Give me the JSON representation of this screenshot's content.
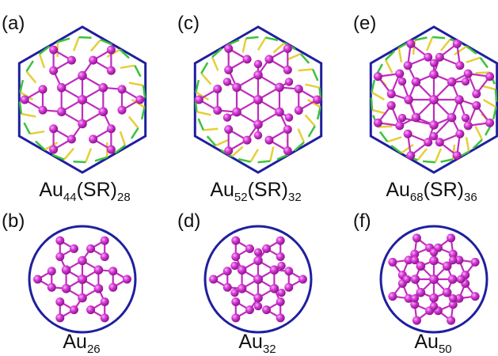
{
  "colors": {
    "frame": "#1f1f9e",
    "atom": "#cc2ecc",
    "atom_light": "#f08cf0",
    "bond": "#c02ac0",
    "sulfur": "#e5cf3a",
    "carbon": "#3cc23c"
  },
  "panels": [
    {
      "label": "(a)",
      "formula": {
        "el": "Au",
        "n": "44",
        "lig": "(SR)",
        "m": "28"
      }
    },
    {
      "label": "(c)",
      "formula": {
        "el": "Au",
        "n": "52",
        "lig": "(SR)",
        "m": "32"
      }
    },
    {
      "label": "(e)",
      "formula": {
        "el": "Au",
        "n": "68",
        "lig": "(SR)",
        "m": "36"
      }
    },
    {
      "label": "(b)",
      "core": {
        "el": "Au",
        "n": "26"
      }
    },
    {
      "label": "(d)",
      "core": {
        "el": "Au",
        "n": "32"
      }
    },
    {
      "label": "(f)",
      "core": {
        "el": "Au",
        "n": "50"
      }
    }
  ]
}
